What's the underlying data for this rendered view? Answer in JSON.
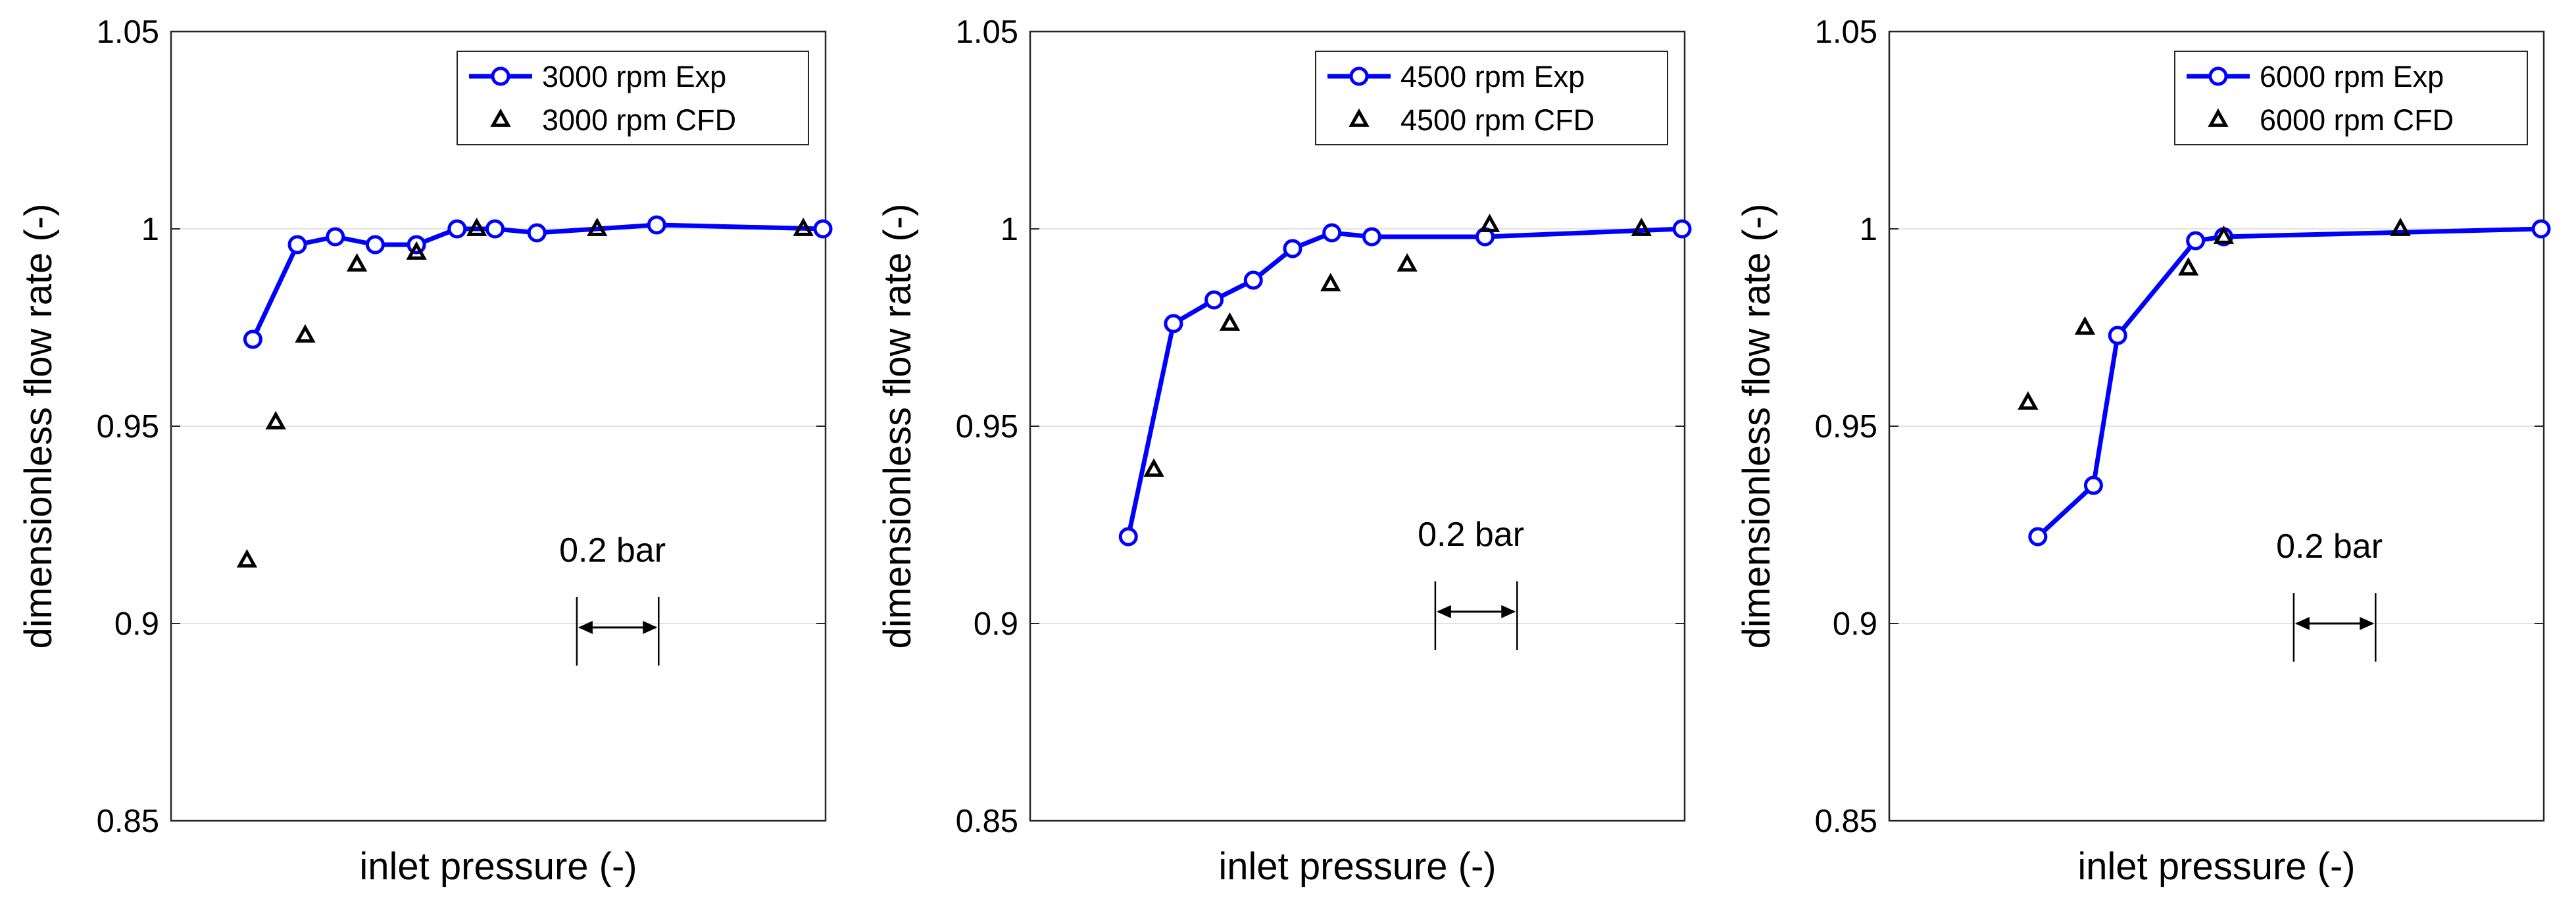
{
  "chart_data": [
    {
      "type": "line",
      "title": "",
      "xlabel": "inlet pressure (-)",
      "ylabel": "dimensionless flow rate (-)",
      "ylim": [
        0.85,
        1.05
      ],
      "yticks": [
        "0.85",
        "0.9",
        "0.95",
        "1",
        "1.05"
      ],
      "xlim": [
        0,
        100
      ],
      "grid": "horizontal",
      "legend_position": "top-right",
      "series": [
        {
          "name": "3000 rpm Exp",
          "style": "line-circle",
          "color": "#0000ff",
          "points": [
            [
              12.5,
              0.972
            ],
            [
              19.3,
              0.996
            ],
            [
              25.1,
              0.998
            ],
            [
              31.2,
              0.996
            ],
            [
              37.5,
              0.996
            ],
            [
              43.7,
              1.0
            ],
            [
              49.5,
              1.0
            ],
            [
              55.9,
              0.999
            ],
            [
              74.2,
              1.001
            ],
            [
              99.6,
              1.0
            ]
          ]
        },
        {
          "name": "3000 rpm CFD",
          "style": "triangle",
          "color": "#000000",
          "points": [
            [
              11.6,
              0.916
            ],
            [
              16.0,
              0.951
            ],
            [
              20.5,
              0.973
            ],
            [
              28.4,
              0.991
            ],
            [
              37.5,
              0.994
            ],
            [
              46.7,
              1.0
            ],
            [
              65.1,
              1.0
            ],
            [
              96.6,
              1.0
            ]
          ]
        }
      ],
      "annotation": {
        "text": "0.2 bar",
        "x_from": 62.0,
        "x_to": 74.5,
        "y": 0.899
      }
    },
    {
      "type": "line",
      "title": "",
      "xlabel": "inlet pressure (-)",
      "ylabel": "dimensionless flow rate (-)",
      "ylim": [
        0.85,
        1.05
      ],
      "yticks": [
        "0.85",
        "0.9",
        "0.95",
        "1",
        "1.05"
      ],
      "xlim": [
        0,
        100
      ],
      "grid": "horizontal",
      "legend_position": "top-right",
      "series": [
        {
          "name": "4500 rpm Exp",
          "style": "line-circle",
          "color": "#0000ff",
          "points": [
            [
              15.0,
              0.922
            ],
            [
              21.9,
              0.976
            ],
            [
              28.1,
              0.982
            ],
            [
              34.1,
              0.987
            ],
            [
              40.1,
              0.995
            ],
            [
              46.1,
              0.999
            ],
            [
              52.2,
              0.998
            ],
            [
              69.5,
              0.998
            ],
            [
              99.6,
              1.0
            ]
          ]
        },
        {
          "name": "4500 rpm CFD",
          "style": "triangle",
          "color": "#000000",
          "points": [
            [
              18.9,
              0.939
            ],
            [
              30.5,
              0.976
            ],
            [
              45.9,
              0.986
            ],
            [
              57.6,
              0.991
            ],
            [
              70.2,
              1.001
            ],
            [
              93.4,
              1.0
            ]
          ]
        }
      ],
      "annotation": {
        "text": "0.2 bar",
        "x_from": 61.9,
        "x_to": 74.4,
        "y": 0.903
      }
    },
    {
      "type": "line",
      "title": "",
      "xlabel": "inlet pressure (-)",
      "ylabel": "dimensionless flow rate (-)",
      "ylim": [
        0.85,
        1.05
      ],
      "yticks": [
        "0.85",
        "0.9",
        "0.95",
        "1",
        "1.05"
      ],
      "xlim": [
        0,
        100
      ],
      "grid": "horizontal",
      "legend_position": "top-right",
      "series": [
        {
          "name": "6000 rpm Exp",
          "style": "line-circle",
          "color": "#0000ff",
          "points": [
            [
              22.7,
              0.922
            ],
            [
              31.2,
              0.935
            ],
            [
              34.9,
              0.973
            ],
            [
              46.8,
              0.997
            ],
            [
              51.1,
              0.998
            ],
            [
              99.6,
              1.0
            ]
          ]
        },
        {
          "name": "6000 rpm CFD",
          "style": "triangle",
          "color": "#000000",
          "points": [
            [
              21.2,
              0.956
            ],
            [
              29.9,
              0.975
            ],
            [
              45.7,
              0.99
            ],
            [
              51.1,
              0.998
            ],
            [
              78.1,
              1.0
            ]
          ]
        }
      ],
      "annotation": {
        "text": "0.2 bar",
        "x_from": 61.8,
        "x_to": 74.3,
        "y": 0.9
      }
    }
  ]
}
